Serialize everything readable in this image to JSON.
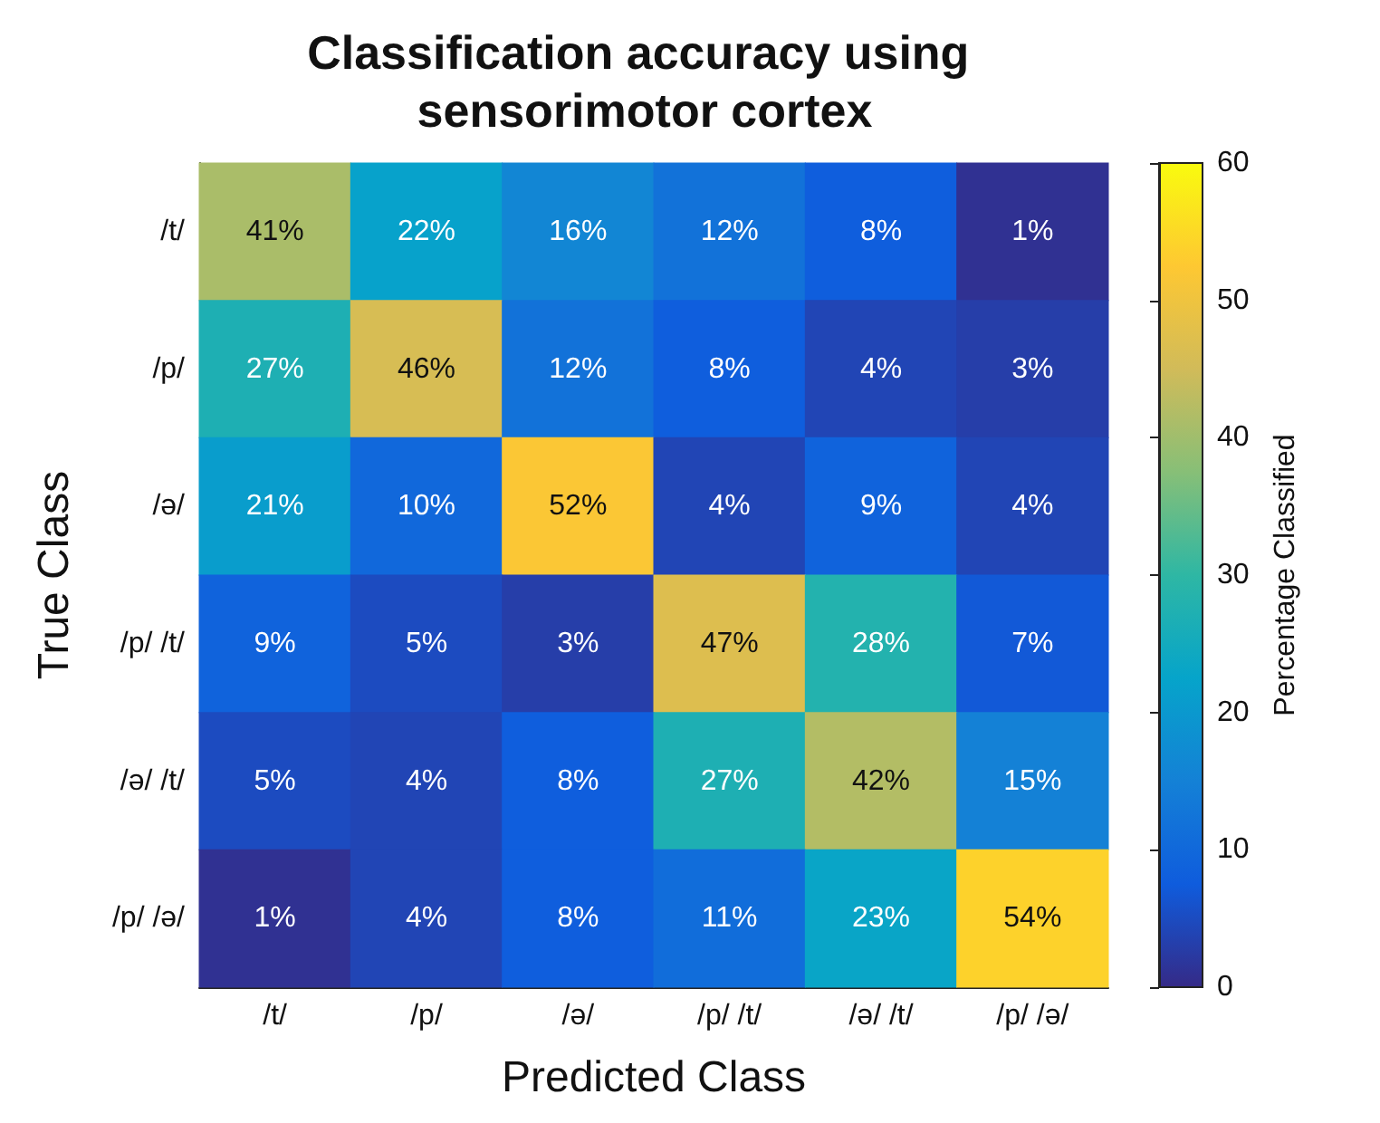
{
  "chart_data": {
    "type": "heatmap",
    "title": "Classification accuracy using sensorimotor cortex",
    "xlabel": "Predicted Class",
    "ylabel": "True Class",
    "clabel": "Percentage Classified",
    "categories": [
      "/t/",
      "/p/",
      "/ə/",
      "/p/ /t/",
      "/ə/ /t/",
      "/p/ /ə/"
    ],
    "y_categories": [
      "/t/",
      "/p/",
      "/ə/",
      "/p/ /t/",
      "/ə/ /t/",
      "/p/ /ə/"
    ],
    "cells": [
      [
        41,
        22,
        16,
        12,
        8,
        1
      ],
      [
        27,
        46,
        12,
        8,
        4,
        3
      ],
      [
        21,
        10,
        52,
        4,
        9,
        4
      ],
      [
        9,
        5,
        3,
        47,
        28,
        7
      ],
      [
        5,
        4,
        8,
        27,
        42,
        15
      ],
      [
        1,
        4,
        8,
        11,
        23,
        54
      ]
    ],
    "cell_labels": [
      [
        "41%",
        "22%",
        "16%",
        "12%",
        "8%",
        "1%"
      ],
      [
        "27%",
        "46%",
        "12%",
        "8%",
        "4%",
        "3%"
      ],
      [
        "21%",
        "10%",
        "52%",
        "4%",
        "9%",
        "4%"
      ],
      [
        "9%",
        "5%",
        "3%",
        "47%",
        "28%",
        "7%"
      ],
      [
        "5%",
        "4%",
        "8%",
        "27%",
        "42%",
        "15%"
      ],
      [
        "1%",
        "4%",
        "8%",
        "11%",
        "23%",
        "54%"
      ]
    ],
    "clim": [
      0,
      60
    ],
    "cticks": [
      0,
      10,
      20,
      30,
      40,
      50,
      60
    ]
  }
}
